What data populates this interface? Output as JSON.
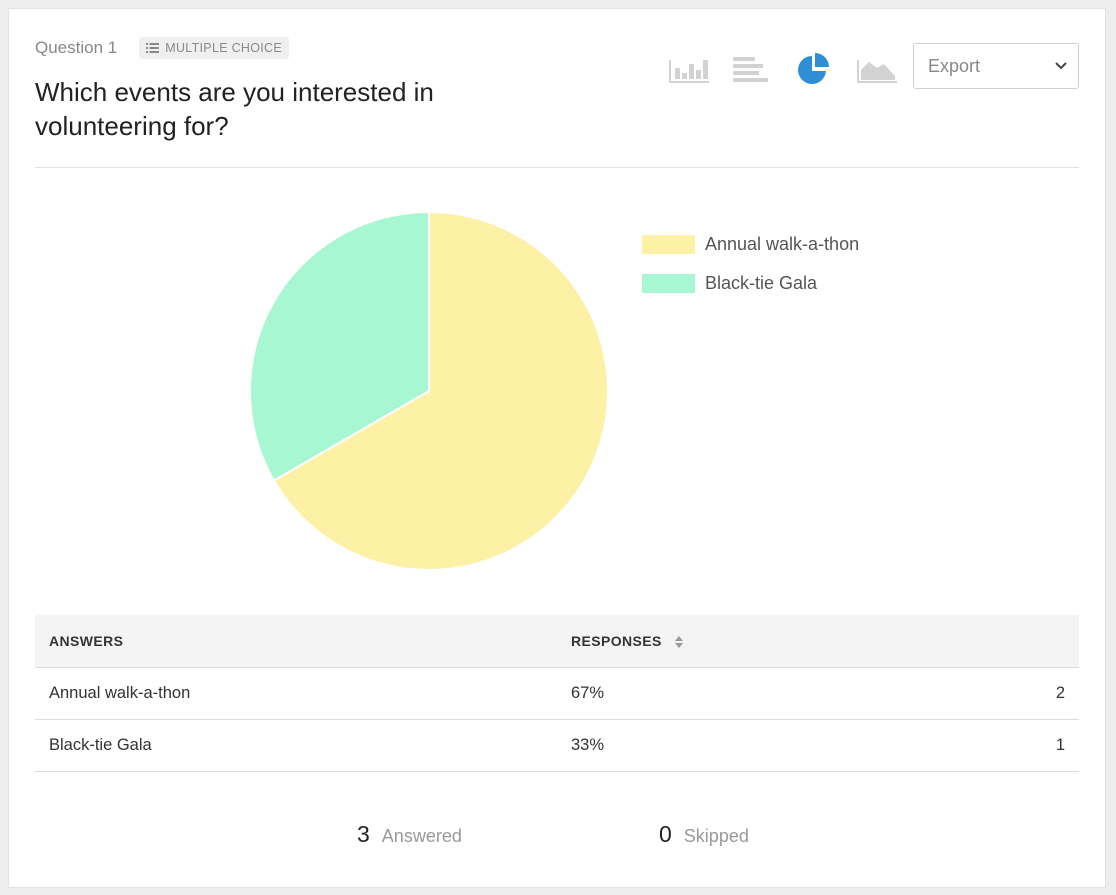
{
  "question": {
    "number_label": "Question 1",
    "type_label": "MULTIPLE CHOICE",
    "type_icon": "list-icon",
    "title": "Which events are you interested in volunteering for?"
  },
  "toolbar": {
    "chart_types": [
      {
        "name": "vertical-bar-chart",
        "icon": "bar-chart-icon",
        "active": false
      },
      {
        "name": "horizontal-bar-chart",
        "icon": "horizontal-bar-icon",
        "active": false
      },
      {
        "name": "pie-chart",
        "icon": "pie-chart-icon",
        "active": true
      },
      {
        "name": "area-chart",
        "icon": "area-chart-icon",
        "active": false
      }
    ],
    "export_label": "Export",
    "active_color": "#2f8fd6",
    "inactive_color": "#d2d2d2"
  },
  "chart_data": {
    "type": "pie",
    "categories": [
      "Annual walk-a-thon",
      "Black-tie Gala"
    ],
    "values": [
      2,
      1
    ],
    "colors": [
      "#fdf1a5",
      "#a6f7d2"
    ],
    "legend_position": "right"
  },
  "table": {
    "headers": {
      "answers": "ANSWERS",
      "responses": "RESPONSES"
    },
    "rows": [
      {
        "answer": "Annual walk-a-thon",
        "percent": "67%",
        "count": "2"
      },
      {
        "answer": "Black-tie Gala",
        "percent": "33%",
        "count": "1"
      }
    ]
  },
  "summary": {
    "answered_count": "3",
    "answered_label": "Answered",
    "skipped_count": "0",
    "skipped_label": "Skipped"
  }
}
